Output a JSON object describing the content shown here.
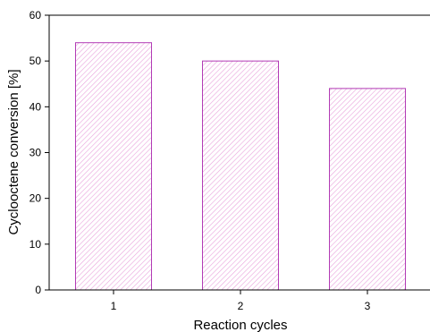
{
  "chart_data": {
    "type": "bar",
    "categories": [
      "1",
      "2",
      "3"
    ],
    "values": [
      54,
      50,
      44
    ],
    "xlabel": "Reaction cycles",
    "ylabel": "Cyclooctene conversion [%]",
    "ylim": [
      0,
      60
    ],
    "yticks": [
      "0",
      "10",
      "20",
      "30",
      "40",
      "50",
      "60"
    ],
    "grid": false,
    "legend": "none",
    "bar_edge_color": "#b23bb5",
    "bar_hatch_color": "#e8a3dc",
    "hatch": "diagonal"
  }
}
